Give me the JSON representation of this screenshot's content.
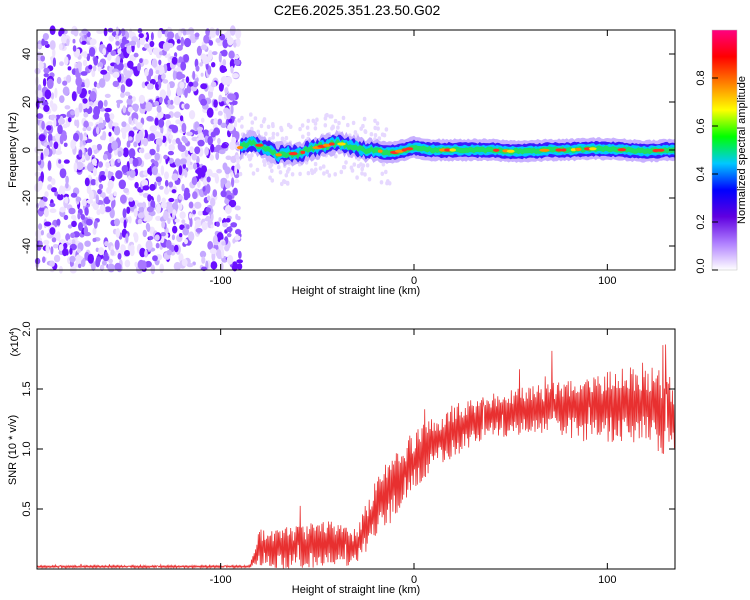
{
  "figure_title": "C2E6.2025.351.23.50.G02",
  "chart_data": [
    {
      "type": "heatmap",
      "title": "C2E6.2025.351.23.50.G02",
      "xlabel": "Height of straight line (km)",
      "ylabel": "Frequency (Hz)",
      "xlim": [
        -195,
        135
      ],
      "ylim": [
        -50,
        50
      ],
      "xticks": [
        -100,
        0,
        100
      ],
      "yticks": [
        -40,
        -20,
        0,
        20,
        40
      ],
      "noise_region_x": [
        -195,
        -90
      ],
      "signal_ridge": {
        "x": [
          -90,
          -85,
          -80,
          -75,
          -70,
          -65,
          -60,
          -55,
          -50,
          -45,
          -40,
          -35,
          -30,
          -25,
          -20,
          -15,
          -10,
          -5,
          0,
          10,
          20,
          30,
          40,
          50,
          60,
          70,
          80,
          90,
          100,
          110,
          120,
          130,
          135
        ],
        "frequency_hz": [
          1,
          3,
          2,
          0,
          -2,
          -1,
          -2,
          0,
          1,
          2,
          3,
          2,
          1,
          0,
          0,
          -1,
          -1,
          0,
          1,
          0,
          0,
          0,
          0,
          -0.5,
          -0.5,
          0,
          0,
          0.5,
          0.5,
          0,
          -0.5,
          0,
          0
        ]
      },
      "colorbar": {
        "label": "Normalized spectral amplitude",
        "min": 0.0,
        "max": 1.0,
        "ticks": [
          "0.0",
          "0.2",
          "0.4",
          "0.6",
          "0.8"
        ],
        "colors": [
          "#ffffff",
          "#b080ff",
          "#6000e0",
          "#0000ff",
          "#00c8ff",
          "#00ff00",
          "#ffff00",
          "#ff8000",
          "#ff0000",
          "#ff0080"
        ]
      }
    },
    {
      "type": "line",
      "xlabel": "Height of straight line (km)",
      "ylabel": "SNR (10 * v/v)",
      "y_scale_label": "(x10",
      "y_scale_exponent": "4",
      "xlim": [
        -195,
        135
      ],
      "ylim": [
        0,
        2.0
      ],
      "xticks": [
        -100,
        0,
        100
      ],
      "yticks": [
        "0.5",
        "1.0",
        "1.5",
        "2.0"
      ],
      "line_color": "#e83030",
      "series_envelope": {
        "x": [
          -195,
          -85,
          -80,
          -70,
          -60,
          -50,
          -40,
          -30,
          -20,
          -10,
          0,
          10,
          20,
          30,
          40,
          50,
          60,
          70,
          80,
          90,
          100,
          110,
          120,
          130,
          135
        ],
        "mean": [
          0.02,
          0.02,
          0.18,
          0.18,
          0.18,
          0.2,
          0.2,
          0.18,
          0.5,
          0.7,
          0.9,
          1.05,
          1.15,
          1.22,
          1.28,
          1.3,
          1.32,
          1.33,
          1.35,
          1.32,
          1.35,
          1.38,
          1.38,
          1.3,
          1.25
        ],
        "spread": [
          0.01,
          0.01,
          0.15,
          0.18,
          0.18,
          0.2,
          0.2,
          0.15,
          0.25,
          0.28,
          0.25,
          0.22,
          0.22,
          0.2,
          0.2,
          0.2,
          0.2,
          0.22,
          0.25,
          0.28,
          0.3,
          0.32,
          0.35,
          0.35,
          0.35
        ]
      }
    }
  ]
}
